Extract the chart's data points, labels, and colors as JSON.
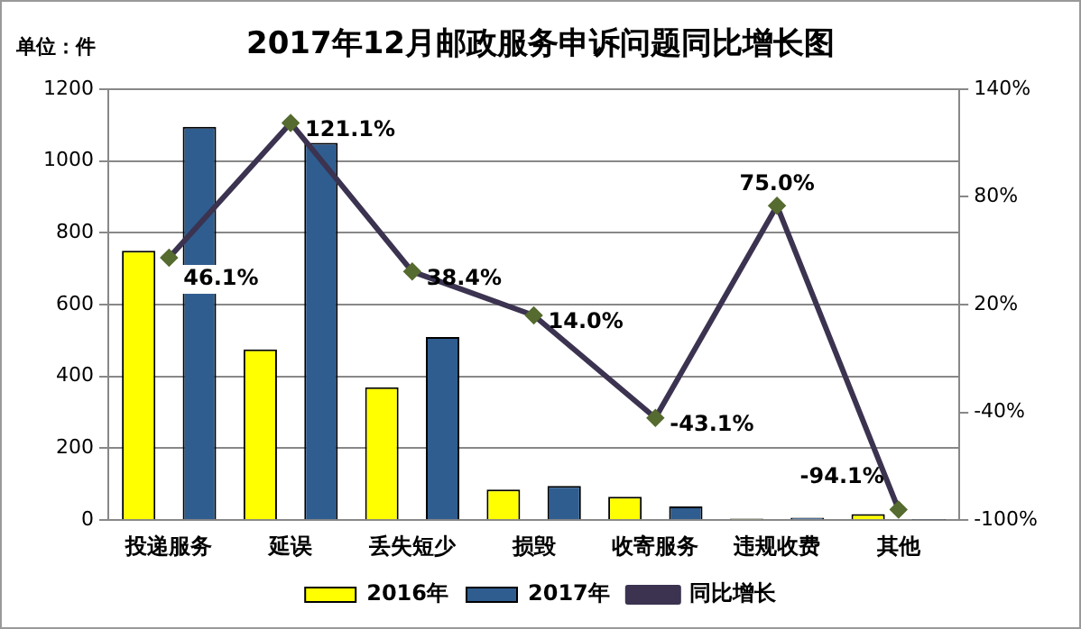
{
  "chart_data": {
    "type": "bar",
    "title": "2017年12月邮政服务申诉问题同比增长图",
    "annotations": [
      "单位：件"
    ],
    "categories": [
      "投递服务",
      "延误",
      "丢失短少",
      "损毁",
      "收寄服务",
      "违规收费",
      "其他"
    ],
    "series": [
      {
        "name": "2016年",
        "color": "#ffff00",
        "values": [
          750,
          475,
          370,
          85,
          65,
          4,
          17
        ]
      },
      {
        "name": "2017年",
        "color": "#2f5d8f",
        "values": [
          1095,
          1050,
          510,
          95,
          38,
          7,
          1
        ]
      },
      {
        "name": "同比增长",
        "type": "line",
        "axis": "y2",
        "color": "#3b3350",
        "marker": "diamond",
        "values": [
          46.1,
          121.1,
          38.4,
          14.0,
          -43.1,
          75.0,
          -94.1
        ],
        "value_labels": [
          "46.1%",
          "121.1%",
          "38.4%",
          "14.0%",
          "-43.1%",
          "75.0%",
          "-94.1%"
        ]
      }
    ],
    "ylim": [
      0,
      1200
    ],
    "yticks": [
      0,
      200,
      400,
      600,
      800,
      1000,
      1200
    ],
    "y2lim": [
      -100,
      140
    ],
    "y2ticks": [
      {
        "value": -100,
        "label": "-100%"
      },
      {
        "value": -40,
        "label": "-40%"
      },
      {
        "value": 20,
        "label": "20%"
      },
      {
        "value": 80,
        "label": "80%"
      },
      {
        "value": 140,
        "label": "140%"
      }
    ],
    "grid": "y",
    "legend": "bottom"
  }
}
